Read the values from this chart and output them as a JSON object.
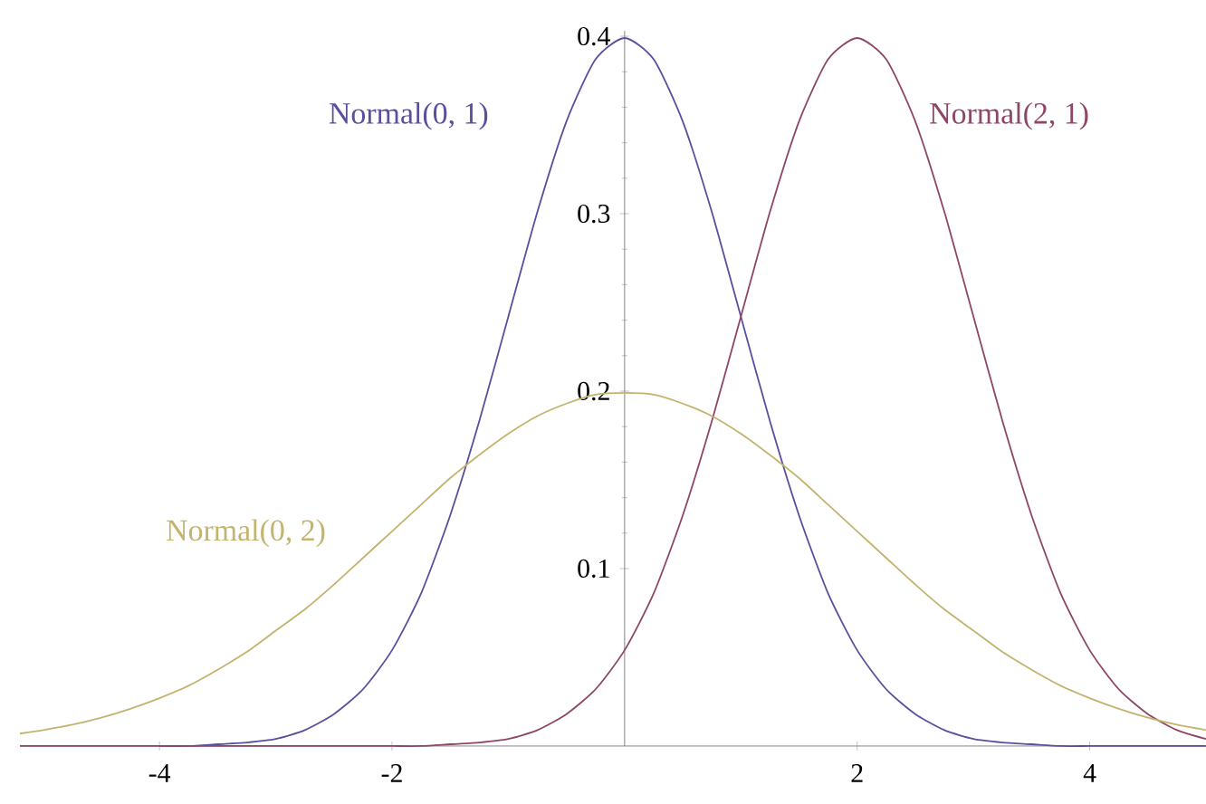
{
  "chart_data": {
    "type": "line",
    "x": [
      -5.2,
      -5,
      -4.75,
      -4.5,
      -4.25,
      -4,
      -3.75,
      -3.5,
      -3.25,
      -3,
      -2.75,
      -2.5,
      -2.25,
      -2,
      -1.75,
      -1.5,
      -1.25,
      -1,
      -0.75,
      -0.5,
      -0.25,
      0,
      0.25,
      0.5,
      0.75,
      1,
      1.25,
      1.5,
      1.75,
      2,
      2.25,
      2.5,
      2.75,
      3,
      3.25,
      3.5,
      3.75,
      4,
      4.25,
      4.5,
      4.75,
      5
    ],
    "series": [
      {
        "name": "Normal(0, 1)",
        "color": "#5a4f9e",
        "values": [
          null,
          null,
          null,
          null,
          null,
          0,
          0,
          0.001,
          0.002,
          0.004,
          0.009,
          0.018,
          0.032,
          0.054,
          0.086,
          0.13,
          0.183,
          0.242,
          0.301,
          0.352,
          0.387,
          0.399,
          0.387,
          0.352,
          0.301,
          0.242,
          0.183,
          0.13,
          0.086,
          0.054,
          0.032,
          0.018,
          0.009,
          0.004,
          0.002,
          0.001,
          0,
          0,
          0,
          0,
          0,
          0
        ]
      },
      {
        "name": "Normal(2, 1)",
        "color": "#8e4668",
        "values": [
          0,
          0,
          0,
          0,
          0,
          0,
          0,
          0,
          0,
          0,
          0,
          0,
          0,
          0,
          0,
          0.001,
          0.002,
          0.004,
          0.009,
          0.018,
          0.032,
          0.054,
          0.086,
          0.13,
          0.183,
          0.242,
          0.301,
          0.352,
          0.387,
          0.399,
          0.387,
          0.352,
          0.301,
          0.242,
          0.183,
          0.13,
          0.086,
          0.054,
          0.032,
          0.018,
          0.009,
          0.004
        ]
      },
      {
        "name": "Normal(0, 2)",
        "color": "#c2b46e",
        "values": [
          0.007,
          0.009,
          0.012,
          0.016,
          0.021,
          0.027,
          0.034,
          0.043,
          0.053,
          0.065,
          0.077,
          0.091,
          0.106,
          0.121,
          0.136,
          0.151,
          0.164,
          0.176,
          0.186,
          0.193,
          0.198,
          0.199,
          0.198,
          0.193,
          0.186,
          0.176,
          0.164,
          0.151,
          0.136,
          0.121,
          0.106,
          0.091,
          0.077,
          0.065,
          0.053,
          0.043,
          0.034,
          0.027,
          0.021,
          0.016,
          0.012,
          0.009
        ]
      }
    ],
    "xlim": [
      -5.2,
      5
    ],
    "ylim": [
      0,
      0.403
    ],
    "xticks": [
      -4,
      -2,
      2,
      4
    ],
    "yticks": [
      0.1,
      0.2,
      0.3,
      0.4
    ],
    "legend": false,
    "grid": false,
    "marker": "none",
    "line_style": "solid"
  }
}
